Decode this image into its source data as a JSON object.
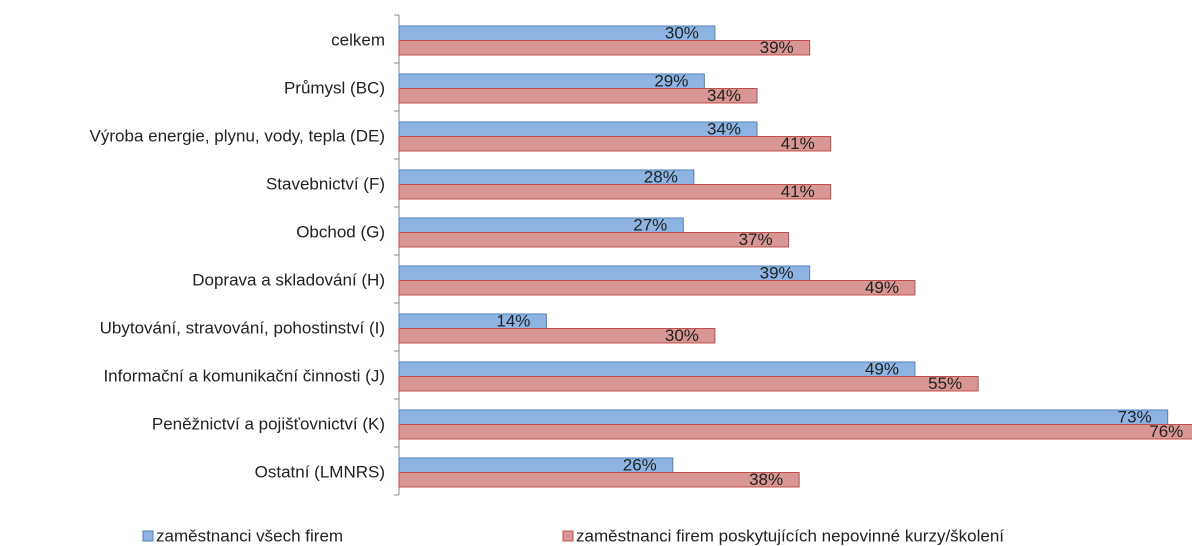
{
  "chart_data": {
    "type": "barh",
    "categories": [
      "celkem",
      "Průmysl (BC)",
      "Výroba energie, plynu, vody, tepla (DE)",
      "Stavebnictví (F)",
      "Obchod (G)",
      "Doprava a skladování (H)",
      "Ubytování, stravování, pohostinství (I)",
      "Informační a komunikační činnosti (J)",
      "Peněžnictví a pojišťovnictví (K)",
      "Ostatní (LMNRS)"
    ],
    "series": [
      {
        "name": "zaměstnanci všech firem",
        "color": "#8eb4e3",
        "stroke": "#4f81bd",
        "values": [
          30,
          29,
          34,
          28,
          27,
          39,
          14,
          49,
          73,
          26
        ],
        "value_labels": [
          "30%",
          "29%",
          "34%",
          "28%",
          "27%",
          "39%",
          "14%",
          "49%",
          "73%",
          "26%"
        ]
      },
      {
        "name": "zaměstnanci firem poskytujících nepovinné kurzy/školení",
        "color": "#d99694",
        "stroke": "#c0504d",
        "values": [
          39,
          34,
          41,
          41,
          37,
          49,
          30,
          55,
          76,
          38
        ],
        "value_labels": [
          "39%",
          "34%",
          "41%",
          "41%",
          "37%",
          "49%",
          "30%",
          "55%",
          "76%",
          "38%"
        ]
      }
    ]
  }
}
